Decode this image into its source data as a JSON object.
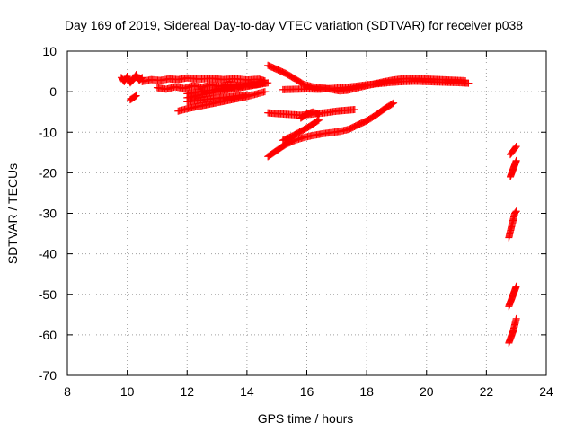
{
  "chart_data": {
    "type": "scatter",
    "title": "Day 169 of 2019, Sidereal Day-to-day VTEC variation (SDTVAR) for receiver p038",
    "xlabel": "GPS time / hours",
    "ylabel": "SDTVAR / TECUs",
    "xlim": [
      8,
      24
    ],
    "ylim": [
      -70,
      10
    ],
    "xticks": [
      8,
      10,
      12,
      14,
      16,
      18,
      20,
      22,
      24
    ],
    "yticks": [
      10,
      0,
      -10,
      -20,
      -30,
      -40,
      -50,
      -60,
      -70
    ],
    "grid": true,
    "marker": "plus",
    "color": "#ff0000",
    "series": [
      {
        "x": [
          9.8,
          9.9,
          10.0,
          10.1,
          10.2,
          10.3,
          10.4,
          10.5
        ],
        "y": [
          3.5,
          2.5,
          3.8,
          2.2,
          3.0,
          4.2,
          2.8,
          3.5
        ]
      },
      {
        "x": [
          10.1,
          10.2,
          10.3
        ],
        "y": [
          -2.0,
          -1.5,
          -1.0
        ]
      },
      {
        "x": [
          10.5,
          10.8,
          11.1,
          11.4,
          11.7,
          12.0,
          12.4,
          12.8,
          13.2,
          13.6,
          14.0,
          14.4,
          14.6
        ],
        "y": [
          2.5,
          3.0,
          2.8,
          3.2,
          3.0,
          3.4,
          3.1,
          3.3,
          3.0,
          3.2,
          2.9,
          3.1,
          2.7
        ]
      },
      {
        "x": [
          11.0,
          11.3,
          11.6,
          11.9,
          12.2,
          12.5,
          12.8,
          13.1,
          13.4,
          13.7,
          14.0,
          14.3,
          14.6
        ],
        "y": [
          1.0,
          0.6,
          1.2,
          0.8,
          1.5,
          1.1,
          1.7,
          1.3,
          1.9,
          1.5,
          2.1,
          1.7,
          2.3
        ]
      },
      {
        "x": [
          12.0,
          12.4,
          12.8,
          13.2,
          13.6,
          14.0,
          14.4,
          14.6
        ],
        "y": [
          -0.5,
          0.0,
          0.4,
          0.8,
          1.2,
          1.6,
          2.0,
          2.3
        ]
      },
      {
        "x": [
          12.0,
          12.4,
          12.8,
          13.2,
          13.6,
          14.0,
          14.4,
          14.7
        ],
        "y": [
          -1.5,
          -0.9,
          -0.3,
          0.3,
          0.8,
          1.3,
          1.8,
          2.2
        ]
      },
      {
        "x": [
          11.7,
          12.0,
          12.4,
          12.8,
          13.2,
          13.6,
          14.0,
          14.3,
          14.6
        ],
        "y": [
          -4.8,
          -4.2,
          -3.6,
          -3.0,
          -2.4,
          -1.8,
          -1.2,
          -0.6,
          0.0
        ]
      },
      {
        "x": [
          12.0,
          12.5,
          13.0,
          13.5,
          14.0
        ],
        "y": [
          -2.5,
          -2.0,
          -1.6,
          -1.2,
          -0.8
        ]
      },
      {
        "x": [
          14.7,
          15.0,
          15.3,
          15.6,
          15.9,
          16.2,
          16.5,
          16.8,
          17.1,
          17.4,
          17.7,
          18.0,
          18.3,
          18.6,
          18.9,
          19.2,
          19.5,
          19.8,
          20.1,
          20.4,
          20.7,
          21.0,
          21.3
        ],
        "y": [
          6.5,
          5.5,
          4.5,
          3.2,
          1.8,
          1.2,
          1.0,
          0.6,
          0.2,
          0.4,
          1.0,
          1.5,
          2.0,
          2.5,
          2.9,
          3.2,
          3.3,
          3.2,
          3.1,
          3.0,
          2.9,
          2.8,
          2.7
        ]
      },
      {
        "x": [
          15.2,
          15.6,
          16.0,
          16.4,
          16.8,
          17.2,
          17.6,
          18.0,
          18.4,
          18.8,
          19.2,
          19.6,
          20.0,
          20.4,
          20.8,
          21.2,
          21.4
        ],
        "y": [
          0.5,
          0.6,
          0.7,
          0.6,
          0.8,
          1.0,
          1.3,
          1.7,
          2.0,
          2.3,
          2.5,
          2.6,
          2.5,
          2.4,
          2.3,
          2.2,
          2.1
        ]
      },
      {
        "x": [
          14.7,
          15.0,
          15.4,
          15.8,
          16.2,
          16.6,
          17.0,
          17.3,
          17.6
        ],
        "y": [
          -5.2,
          -5.4,
          -5.6,
          -5.8,
          -5.5,
          -5.2,
          -4.8,
          -4.6,
          -4.4
        ]
      },
      {
        "x": [
          15.8,
          16.0,
          16.2,
          16.4
        ],
        "y": [
          -6.5,
          -5.5,
          -5.0,
          -5.6
        ]
      },
      {
        "x": [
          14.7,
          15.0,
          15.3,
          15.6,
          15.9,
          16.2,
          16.5,
          16.8,
          17.1,
          17.4,
          17.7,
          18.0,
          18.3,
          18.6,
          18.9
        ],
        "y": [
          -16.0,
          -14.5,
          -13.0,
          -12.0,
          -11.3,
          -10.8,
          -10.4,
          -10.1,
          -9.8,
          -9.3,
          -8.2,
          -7.2,
          -5.8,
          -4.2,
          -2.8
        ]
      },
      {
        "x": [
          15.2,
          15.5,
          15.8,
          16.1,
          16.4
        ],
        "y": [
          -12.0,
          -11.0,
          -9.8,
          -8.5,
          -7.0
        ]
      },
      {
        "x": [
          22.8,
          22.9,
          23.0
        ],
        "y": [
          -15.5,
          -14.5,
          -13.5
        ]
      },
      {
        "x": [
          22.8,
          22.85,
          22.9,
          22.95,
          23.0
        ],
        "y": [
          -21.0,
          -20.0,
          -19.0,
          -18.0,
          -17.0
        ]
      },
      {
        "x": [
          22.75,
          22.8,
          22.85,
          22.9,
          22.95,
          23.0
        ],
        "y": [
          -36.0,
          -34.5,
          -33.0,
          -31.5,
          -30.0,
          -29.5
        ]
      },
      {
        "x": [
          22.75,
          22.8,
          22.85,
          22.9,
          22.95,
          23.0
        ],
        "y": [
          -53.0,
          -52.0,
          -51.0,
          -50.0,
          -49.0,
          -48.0
        ]
      },
      {
        "x": [
          22.75,
          22.8,
          22.85,
          22.9,
          22.95,
          23.0
        ],
        "y": [
          -62.0,
          -61.0,
          -60.0,
          -59.0,
          -57.5,
          -56.0
        ]
      }
    ]
  }
}
